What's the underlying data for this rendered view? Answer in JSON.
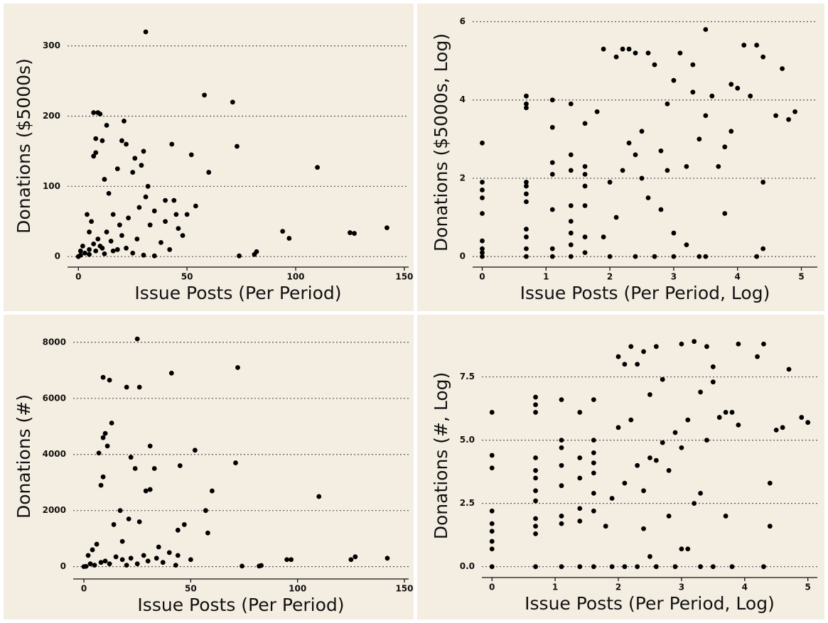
{
  "chart_data": [
    {
      "type": "scatter",
      "xlabel": "Issue Posts (Per Period)",
      "ylabel": "Donations ($5000s)",
      "color": "#000000",
      "grid": true,
      "xlim": [
        -5,
        152
      ],
      "ylim": [
        -15,
        330
      ],
      "xticks": [
        0,
        50,
        100,
        150
      ],
      "yticks": [
        0,
        100,
        200,
        300
      ],
      "x": [
        31,
        58,
        71,
        73,
        43,
        52,
        60,
        110,
        94,
        97,
        125,
        127,
        142,
        82,
        81,
        74,
        7,
        9,
        10,
        8,
        8,
        7,
        11,
        13,
        21,
        20,
        22,
        26,
        30,
        29,
        32,
        31,
        25,
        18,
        12,
        14,
        16,
        19,
        23,
        28,
        35,
        40,
        44,
        45,
        48,
        50,
        54,
        40,
        38,
        42,
        4,
        6,
        5,
        2,
        3,
        1,
        5,
        8,
        10,
        12,
        15,
        18,
        20,
        25,
        30,
        35,
        5,
        9,
        13,
        7,
        11,
        16,
        22,
        27,
        33,
        46,
        0,
        1
      ],
      "values": [
        320,
        230,
        220,
        157,
        160,
        145,
        120,
        127,
        36,
        26,
        34,
        33,
        41,
        7,
        3,
        1,
        205,
        205,
        203,
        168,
        148,
        143,
        165,
        187,
        193,
        165,
        160,
        140,
        150,
        130,
        100,
        85,
        120,
        125,
        110,
        90,
        60,
        45,
        55,
        70,
        65,
        80,
        80,
        60,
        30,
        60,
        72,
        50,
        20,
        10,
        60,
        50,
        35,
        15,
        5,
        2,
        3,
        8,
        15,
        4,
        22,
        10,
        30,
        5,
        2,
        1,
        10,
        25,
        35,
        18,
        12,
        8,
        12,
        25,
        45,
        40,
        0,
        8
      ]
    },
    {
      "type": "scatter",
      "xlabel": "Issue Posts (Per Period, Log)",
      "ylabel": "Donations ($5000s, Log)",
      "color": "#000000",
      "grid": true,
      "xlim": [
        -0.15,
        5.25
      ],
      "ylim": [
        -0.27,
        6.1
      ],
      "xticks": [
        0,
        1,
        2,
        3,
        4,
        5
      ],
      "yticks": [
        0,
        2,
        4,
        6
      ],
      "x": [
        0,
        0,
        0,
        0,
        0,
        0,
        0,
        0,
        0,
        0.69,
        0.69,
        0.69,
        0.69,
        0.69,
        0.69,
        0.69,
        0.69,
        0.69,
        0.69,
        0.69,
        1.1,
        1.1,
        1.1,
        1.1,
        1.1,
        1.1,
        1.1,
        1.39,
        1.39,
        1.39,
        1.39,
        1.39,
        1.39,
        1.39,
        1.39,
        1.61,
        1.61,
        1.61,
        1.61,
        1.61,
        1.61,
        1.61,
        1.8,
        1.9,
        2.1,
        2.2,
        2.3,
        2.4,
        2.6,
        2.7,
        3.5,
        4.1,
        4.3,
        4.4,
        4.7,
        4.6,
        4.9,
        4.8,
        4.4,
        4.4,
        4.3,
        3.8,
        3.9,
        4.0,
        3.6,
        3.3,
        3.1,
        3.0,
        2.9,
        2.5,
        2.3,
        2.2,
        2.0,
        2.6,
        2.8,
        3.0,
        3.2,
        3.4,
        3.5,
        3.2,
        3.4,
        2.8,
        2.5,
        2.1,
        1.9,
        2.4,
        2.7,
        3.0,
        2.0,
        3.7,
        3.8,
        3.9,
        4.2,
        3.5,
        3.3,
        2.9,
        2.4
      ],
      "values": [
        0,
        0.1,
        0.2,
        0.4,
        1.1,
        1.5,
        1.7,
        1.9,
        2.9,
        0,
        0.2,
        0.5,
        0.7,
        1.4,
        1.6,
        1.8,
        1.9,
        3.8,
        3.9,
        4.1,
        0,
        0.2,
        1.2,
        2.1,
        2.4,
        3.3,
        4,
        0,
        0.3,
        0.6,
        0.9,
        1.3,
        2.2,
        2.6,
        3.9,
        0.1,
        0.5,
        1.3,
        1.8,
        2.1,
        2.3,
        3.4,
        3.7,
        5.3,
        5.1,
        5.3,
        5.3,
        5.2,
        5.2,
        4.9,
        5.8,
        5.4,
        5.4,
        5.1,
        4.8,
        3.6,
        3.7,
        3.5,
        1.9,
        0.2,
        0,
        1.1,
        4.4,
        4.3,
        4.1,
        4.9,
        5.2,
        4.5,
        3.9,
        3.2,
        2.9,
        2.2,
        1.9,
        1.5,
        1.2,
        0.6,
        0.3,
        0,
        0,
        2.3,
        3.0,
        2.7,
        2.0,
        1.0,
        0.5,
        0,
        0,
        0,
        0,
        2.3,
        2.8,
        3.2,
        4.1,
        3.6,
        4.2,
        2.2,
        2.6
      ]
    },
    {
      "type": "scatter",
      "xlabel": "Issue Posts (Per Period)",
      "ylabel": "Donations (#)",
      "color": "#000000",
      "grid": true,
      "xlim": [
        -5,
        152
      ],
      "ylim": [
        -440,
        8300
      ],
      "xticks": [
        0,
        50,
        100,
        150
      ],
      "yticks": [
        0,
        2000,
        4000,
        6000,
        8000
      ],
      "x": [
        25,
        9,
        12,
        20,
        26,
        41,
        72,
        13,
        10,
        9,
        7,
        11,
        22,
        24,
        31,
        33,
        45,
        71,
        52,
        110,
        60,
        57,
        58,
        47,
        44,
        29,
        31,
        17,
        21,
        14,
        18,
        26,
        9,
        8,
        35,
        40,
        44,
        50,
        74,
        82,
        83,
        95,
        97,
        125,
        127,
        142,
        2,
        4,
        6,
        3,
        5,
        8,
        10,
        12,
        15,
        18,
        20,
        22,
        25,
        28,
        30,
        34,
        37,
        43,
        1,
        0
      ],
      "values": [
        8120,
        6750,
        6650,
        6400,
        6400,
        6900,
        7100,
        5120,
        4750,
        4600,
        4050,
        4300,
        3900,
        3500,
        4300,
        3500,
        3600,
        3700,
        4150,
        2500,
        2700,
        2000,
        1200,
        1500,
        1300,
        2700,
        2750,
        2000,
        1700,
        1500,
        900,
        1600,
        3200,
        2900,
        700,
        500,
        400,
        250,
        20,
        20,
        40,
        250,
        250,
        250,
        350,
        300,
        400,
        600,
        800,
        100,
        50,
        150,
        200,
        100,
        350,
        250,
        50,
        300,
        100,
        400,
        200,
        300,
        150,
        50,
        10,
        0
      ]
    },
    {
      "type": "scatter",
      "xlabel": "Issue Posts (Per Period, Log)",
      "ylabel": "Donations (#, Log)",
      "color": "#000000",
      "grid": true,
      "xlim": [
        -0.16,
        5.15
      ],
      "ylim": [
        -0.43,
        9.2
      ],
      "xticks": [
        0,
        1,
        2,
        3,
        4,
        5
      ],
      "yticks": [
        {
          "value": 0,
          "label": "0.0"
        },
        2.5,
        {
          "value": 5,
          "label": "5.0"
        },
        7.5
      ],
      "x": [
        0,
        0,
        0,
        0,
        0,
        0,
        0,
        0,
        0,
        0.69,
        0.69,
        0.69,
        0.69,
        0.69,
        0.69,
        0.69,
        0.69,
        0.69,
        0.69,
        0.69,
        0.69,
        1.1,
        1.1,
        1.1,
        1.1,
        1.1,
        1.1,
        1.1,
        1.1,
        1.39,
        1.39,
        1.39,
        1.39,
        1.39,
        1.39,
        1.61,
        1.61,
        1.61,
        1.61,
        1.61,
        1.61,
        1.61,
        1.61,
        2.0,
        2.2,
        2.1,
        2.4,
        2.3,
        2.6,
        3.0,
        3.2,
        3.4,
        3.5,
        3.9,
        4.3,
        4.2,
        4.7,
        4.9,
        5.0,
        4.6,
        4.5,
        4.4,
        4.4,
        4.3,
        3.9,
        3.8,
        3.7,
        3.6,
        3.5,
        3.3,
        3.1,
        2.9,
        2.7,
        2.5,
        2.3,
        2.1,
        1.9,
        1.8,
        2.4,
        2.6,
        2.8,
        3.0,
        3.2,
        3.0,
        3.1,
        2.0,
        2.2,
        2.5,
        2.7,
        2.8,
        2.4,
        2.5,
        3.3,
        3.4,
        3.7,
        1.9,
        2.1,
        2.3,
        2.6,
        2.9,
        3.3,
        3.5,
        3.8
      ],
      "values": [
        0,
        0.7,
        1,
        1.4,
        1.7,
        2.2,
        3.9,
        4.4,
        6.1,
        0,
        1.3,
        1.6,
        1.9,
        2.6,
        3,
        3.5,
        3.8,
        4.3,
        6.1,
        6.4,
        6.7,
        0,
        1.7,
        2,
        3.2,
        4,
        4.7,
        5,
        6.6,
        0,
        1.8,
        2.3,
        3.5,
        4.3,
        6.1,
        0,
        2.2,
        2.9,
        3.7,
        4.1,
        4.5,
        5,
        6.6,
        8.3,
        8.7,
        8.0,
        8.5,
        8.0,
        8.7,
        8.8,
        8.9,
        8.7,
        7.9,
        8.8,
        8.8,
        8.3,
        7.8,
        5.9,
        5.7,
        5.5,
        5.4,
        3.3,
        1.6,
        0,
        5.6,
        6.1,
        6.1,
        5.9,
        7.3,
        6.9,
        5.8,
        5.3,
        4.9,
        4.3,
        4.0,
        3.3,
        2.7,
        1.6,
        3.0,
        4.2,
        3.8,
        4.7,
        2.5,
        0.7,
        0.7,
        5.5,
        5.8,
        6.8,
        7.4,
        2.0,
        1.5,
        0.4,
        2.9,
        5.0,
        2.0,
        0,
        0,
        0,
        0,
        0,
        0,
        0,
        0
      ]
    }
  ]
}
